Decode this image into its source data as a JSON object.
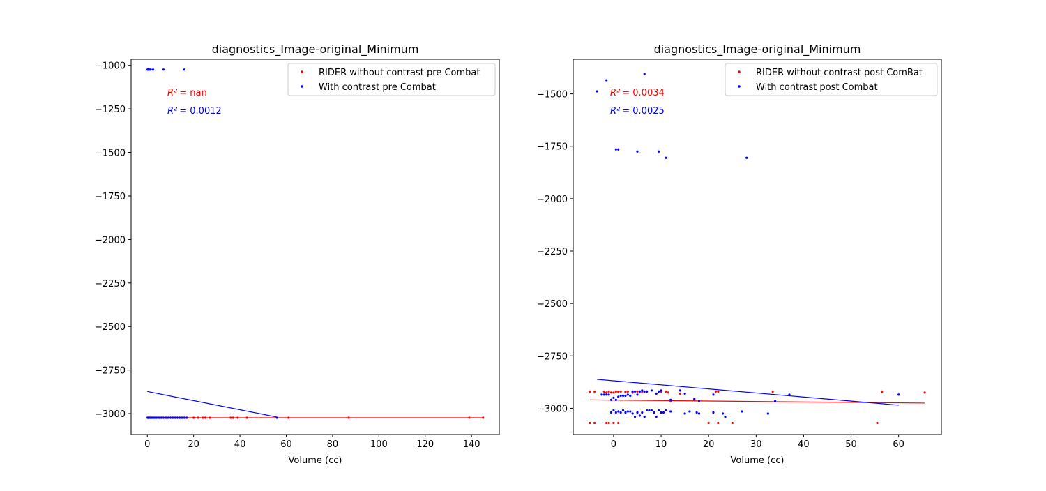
{
  "chart_data": [
    {
      "type": "scatter",
      "title": "diagnostics_Image-original_Minimum",
      "xlabel": "Volume (cc)",
      "ylabel": "",
      "xlim": [
        -7,
        152
      ],
      "ylim": [
        -3120,
        -965
      ],
      "xticks": [
        0,
        20,
        40,
        60,
        80,
        100,
        120,
        140
      ],
      "yticks": [
        -1000,
        -1250,
        -1500,
        -1750,
        -2000,
        -2250,
        -2500,
        -2750,
        -3000
      ],
      "legend_position": "top-right",
      "annotations": [
        {
          "label": "R²",
          "value": "= nan",
          "color": "#ff0000"
        },
        {
          "label": "R²",
          "value": "= 0.0012",
          "color": "#0000ff"
        }
      ],
      "series": [
        {
          "name": "RIDER without contrast pre Combat",
          "color": "#ff0000",
          "points": [
            [
              0.2,
              -3024
            ],
            [
              0.5,
              -3024
            ],
            [
              1,
              -3024
            ],
            [
              1.5,
              -3024
            ],
            [
              2,
              -3024
            ],
            [
              3,
              -3024
            ],
            [
              4,
              -3024
            ],
            [
              5,
              -3024
            ],
            [
              6,
              -3024
            ],
            [
              7,
              -3024
            ],
            [
              8,
              -3024
            ],
            [
              9,
              -3024
            ],
            [
              10,
              -3024
            ],
            [
              11,
              -3024
            ],
            [
              12,
              -3024
            ],
            [
              13,
              -3024
            ],
            [
              14,
              -3024
            ],
            [
              15,
              -3024
            ],
            [
              16,
              -3024
            ],
            [
              17,
              -3024
            ],
            [
              20,
              -3024
            ],
            [
              22,
              -3024
            ],
            [
              24,
              -3024
            ],
            [
              25,
              -3024
            ],
            [
              27,
              -3024
            ],
            [
              36,
              -3024
            ],
            [
              37,
              -3024
            ],
            [
              39,
              -3024
            ],
            [
              43,
              -3024
            ],
            [
              61,
              -3024
            ],
            [
              87,
              -3024
            ],
            [
              139,
              -3024
            ],
            [
              145,
              -3024
            ]
          ],
          "fit": [
            [
              0,
              -3024
            ],
            [
              145,
              -3024
            ]
          ]
        },
        {
          "name": "With contrast pre Combat",
          "color": "#0000ff",
          "points": [
            [
              0.1,
              -1024
            ],
            [
              0.3,
              -1024
            ],
            [
              0.6,
              -1024
            ],
            [
              1,
              -1024
            ],
            [
              1.5,
              -1024
            ],
            [
              2.5,
              -1024
            ],
            [
              7,
              -1024
            ],
            [
              16,
              -1024
            ],
            [
              0.1,
              -3024
            ],
            [
              0.3,
              -3024
            ],
            [
              0.5,
              -3024
            ],
            [
              0.8,
              -3024
            ],
            [
              1,
              -3024
            ],
            [
              1.3,
              -3024
            ],
            [
              1.6,
              -3024
            ],
            [
              2,
              -3024
            ],
            [
              2.4,
              -3024
            ],
            [
              2.8,
              -3024
            ],
            [
              3.2,
              -3024
            ],
            [
              3.8,
              -3024
            ],
            [
              4.5,
              -3024
            ],
            [
              5.2,
              -3024
            ],
            [
              6,
              -3024
            ],
            [
              7,
              -3024
            ],
            [
              8,
              -3024
            ],
            [
              9,
              -3024
            ],
            [
              10,
              -3024
            ],
            [
              11,
              -3024
            ],
            [
              12,
              -3024
            ],
            [
              13,
              -3024
            ],
            [
              14,
              -3024
            ],
            [
              15,
              -3024
            ],
            [
              16,
              -3024
            ],
            [
              17,
              -3024
            ],
            [
              56,
              -3024
            ]
          ],
          "fit": [
            [
              0,
              -2873
            ],
            [
              56,
              -3020
            ]
          ]
        }
      ]
    },
    {
      "type": "scatter",
      "title": "diagnostics_Image-original_Minimum",
      "xlabel": "Volume (cc)",
      "ylabel": "",
      "xlim": [
        -8.5,
        69
      ],
      "ylim": [
        -3125,
        -1335
      ],
      "xticks": [
        0,
        10,
        20,
        30,
        40,
        50,
        60
      ],
      "yticks": [
        -1500,
        -1750,
        -2000,
        -2250,
        -2500,
        -2750,
        -3000
      ],
      "legend_position": "top-right",
      "annotations": [
        {
          "label": "R²",
          "value": "= 0.0034",
          "color": "#ff0000"
        },
        {
          "label": "R²",
          "value": "= 0.0025",
          "color": "#0000ff"
        }
      ],
      "series": [
        {
          "name": "RIDER without contrast post ComBat",
          "color": "#ff0000",
          "points": [
            [
              -5,
              -2920
            ],
            [
              -4,
              -2920
            ],
            [
              -2,
              -2920
            ],
            [
              -1.5,
              -2925
            ],
            [
              -1,
              -2920
            ],
            [
              -0.5,
              -2925
            ],
            [
              0,
              -2925
            ],
            [
              0.5,
              -2920
            ],
            [
              1,
              -2922
            ],
            [
              1.5,
              -2920
            ],
            [
              2.5,
              -2922
            ],
            [
              3,
              -2920
            ],
            [
              4,
              -2925
            ],
            [
              5,
              -2920
            ],
            [
              6,
              -2922
            ],
            [
              7,
              -2920
            ],
            [
              10,
              -2920
            ],
            [
              11,
              -2920
            ],
            [
              11.5,
              -2925
            ],
            [
              12,
              -2965
            ],
            [
              14,
              -2930
            ],
            [
              17,
              -2960
            ],
            [
              21.5,
              -2920
            ],
            [
              22,
              -2920
            ],
            [
              33.5,
              -2920
            ],
            [
              56.5,
              -2920
            ],
            [
              65.5,
              -2925
            ],
            [
              -5,
              -3070
            ],
            [
              -4,
              -3070
            ],
            [
              -1.5,
              -3070
            ],
            [
              -1,
              -3070
            ],
            [
              0,
              -3070
            ],
            [
              1,
              -3070
            ],
            [
              20,
              -3070
            ],
            [
              22,
              -3070
            ],
            [
              25,
              -3070
            ],
            [
              55.5,
              -3070
            ]
          ],
          "fit": [
            [
              -5,
              -2960
            ],
            [
              65.5,
              -2975
            ]
          ]
        },
        {
          "name": "With contrast post Combat",
          "color": "#0000ff",
          "points": [
            [
              -3.5,
              -1488
            ],
            [
              -1.5,
              -1435
            ],
            [
              6.5,
              -1405
            ],
            [
              0.5,
              -1765
            ],
            [
              1,
              -1765
            ],
            [
              5,
              -1775
            ],
            [
              9.5,
              -1775
            ],
            [
              11,
              -1805
            ],
            [
              28,
              -1805
            ],
            [
              -2.5,
              -2935
            ],
            [
              -2,
              -2935
            ],
            [
              -1.5,
              -2935
            ],
            [
              -1,
              -2935
            ],
            [
              -0.5,
              -2960
            ],
            [
              0,
              -2950
            ],
            [
              0.5,
              -2960
            ],
            [
              1,
              -2945
            ],
            [
              1.5,
              -2940
            ],
            [
              2,
              -2940
            ],
            [
              2.5,
              -2940
            ],
            [
              3,
              -2935
            ],
            [
              3.5,
              -2940
            ],
            [
              4,
              -2920
            ],
            [
              4.5,
              -2920
            ],
            [
              5,
              -2935
            ],
            [
              5.5,
              -2920
            ],
            [
              6,
              -2915
            ],
            [
              6.5,
              -2920
            ],
            [
              7,
              -2920
            ],
            [
              8,
              -2915
            ],
            [
              9,
              -2930
            ],
            [
              9.5,
              -2920
            ],
            [
              10,
              -2915
            ],
            [
              12,
              -2960
            ],
            [
              14,
              -2915
            ],
            [
              15,
              -2930
            ],
            [
              17,
              -2955
            ],
            [
              18,
              -2965
            ],
            [
              21,
              -2935
            ],
            [
              34,
              -2965
            ],
            [
              37,
              -2935
            ],
            [
              60,
              -2935
            ],
            [
              -0.5,
              -3020
            ],
            [
              0,
              -3010
            ],
            [
              0.5,
              -3020
            ],
            [
              1,
              -3015
            ],
            [
              1.5,
              -3020
            ],
            [
              2,
              -3010
            ],
            [
              2.5,
              -3020
            ],
            [
              3,
              -3015
            ],
            [
              3.5,
              -3015
            ],
            [
              4,
              -3025
            ],
            [
              4.5,
              -3040
            ],
            [
              5,
              -3020
            ],
            [
              5.5,
              -3035
            ],
            [
              6,
              -3020
            ],
            [
              6.5,
              -3040
            ],
            [
              7,
              -3010
            ],
            [
              7.5,
              -3010
            ],
            [
              8,
              -3010
            ],
            [
              8.5,
              -3020
            ],
            [
              9,
              -3040
            ],
            [
              9.5,
              -3010
            ],
            [
              10,
              -3020
            ],
            [
              10.5,
              -3020
            ],
            [
              11,
              -3010
            ],
            [
              12,
              -3015
            ],
            [
              15,
              -3025
            ],
            [
              16,
              -3015
            ],
            [
              17.5,
              -3020
            ],
            [
              18,
              -3025
            ],
            [
              21,
              -3020
            ],
            [
              23,
              -3025
            ],
            [
              23.5,
              -3040
            ],
            [
              27,
              -3015
            ],
            [
              32.5,
              -3025
            ]
          ],
          "fit": [
            [
              -3.5,
              -2862
            ],
            [
              60,
              -2985
            ]
          ]
        }
      ]
    }
  ]
}
